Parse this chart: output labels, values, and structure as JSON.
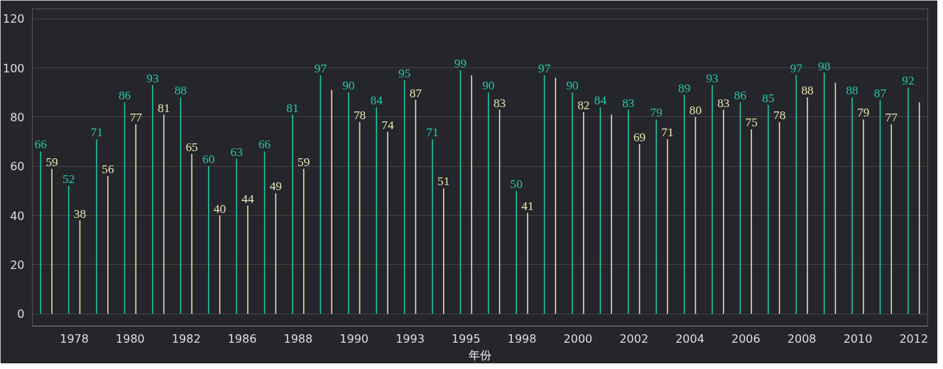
{
  "chart_data": {
    "type": "bar",
    "xlabel": "年份",
    "categories": [
      null,
      "1978",
      null,
      "1980",
      null,
      "1982",
      null,
      "1986",
      null,
      "1988",
      null,
      "1990",
      null,
      "1993",
      null,
      "1995",
      null,
      "1998",
      null,
      "2000",
      null,
      "2002",
      null,
      "2004",
      null,
      "2006",
      null,
      "2008",
      null,
      "2010",
      null,
      "2012"
    ],
    "series": [
      {
        "color": "#1fc8a8",
        "values": [
          66,
          52,
          71,
          86,
          93,
          88,
          60,
          63,
          66,
          81,
          97,
          90,
          84,
          95,
          71,
          99,
          90,
          50,
          97,
          90,
          84,
          83,
          79,
          89,
          93,
          86,
          85,
          97,
          98,
          88,
          87,
          92
        ],
        "value_labels": [
          "66",
          "52",
          "71",
          "86",
          "93",
          "88",
          "60",
          "63",
          "66",
          "81",
          "97",
          "90",
          "84",
          "95",
          "71",
          "99",
          "90",
          "50",
          "97",
          "90",
          "84",
          "83",
          "79",
          "89",
          "93",
          "86",
          "85",
          "97",
          "98",
          "88",
          "87",
          "92"
        ]
      },
      {
        "color": "#e8e2b0",
        "values": [
          59,
          38,
          56,
          77,
          81,
          65,
          40,
          44,
          49,
          59,
          91,
          78,
          74,
          87,
          51,
          97,
          83,
          41,
          96,
          82,
          81,
          69,
          71,
          80,
          83,
          75,
          78,
          88,
          94,
          79,
          77,
          86
        ],
        "value_labels": [
          "59",
          "38",
          "56",
          "77",
          "81",
          "65",
          "40",
          "44",
          "49",
          "59",
          null,
          "78",
          "74",
          "87",
          "51",
          null,
          "83",
          "41",
          null,
          "82",
          null,
          "69",
          "71",
          "80",
          "83",
          "75",
          "78",
          "88",
          null,
          "79",
          "77",
          null
        ]
      }
    ],
    "ylim": [
      -5,
      124
    ],
    "yticks": [
      0,
      20,
      40,
      60,
      80,
      100,
      120
    ],
    "grid": "y"
  }
}
